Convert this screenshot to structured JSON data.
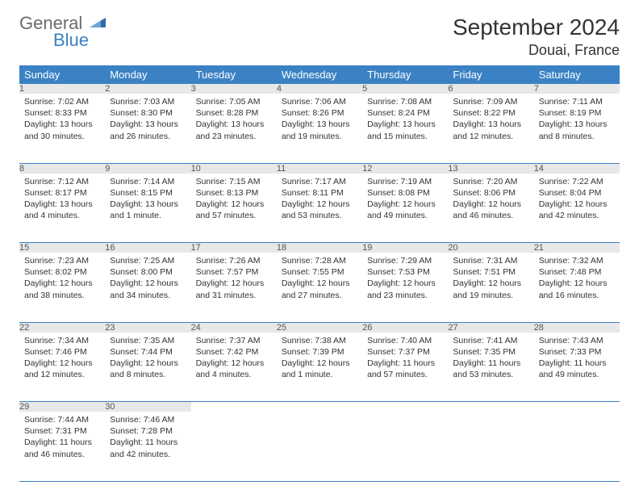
{
  "logo": {
    "general": "General",
    "blue": "Blue"
  },
  "title": "September 2024",
  "location": "Douai, France",
  "colors": {
    "header_bg": "#3b82c4",
    "header_fg": "#ffffff",
    "daynum_bg": "#e8e8e8",
    "row_divider": "#3b82c4",
    "logo_gray": "#6b6b6b",
    "logo_blue": "#3b82c4"
  },
  "weekdays": [
    "Sunday",
    "Monday",
    "Tuesday",
    "Wednesday",
    "Thursday",
    "Friday",
    "Saturday"
  ],
  "weeks": [
    [
      {
        "n": "1",
        "sunrise": "Sunrise: 7:02 AM",
        "sunset": "Sunset: 8:33 PM",
        "day1": "Daylight: 13 hours",
        "day2": "and 30 minutes."
      },
      {
        "n": "2",
        "sunrise": "Sunrise: 7:03 AM",
        "sunset": "Sunset: 8:30 PM",
        "day1": "Daylight: 13 hours",
        "day2": "and 26 minutes."
      },
      {
        "n": "3",
        "sunrise": "Sunrise: 7:05 AM",
        "sunset": "Sunset: 8:28 PM",
        "day1": "Daylight: 13 hours",
        "day2": "and 23 minutes."
      },
      {
        "n": "4",
        "sunrise": "Sunrise: 7:06 AM",
        "sunset": "Sunset: 8:26 PM",
        "day1": "Daylight: 13 hours",
        "day2": "and 19 minutes."
      },
      {
        "n": "5",
        "sunrise": "Sunrise: 7:08 AM",
        "sunset": "Sunset: 8:24 PM",
        "day1": "Daylight: 13 hours",
        "day2": "and 15 minutes."
      },
      {
        "n": "6",
        "sunrise": "Sunrise: 7:09 AM",
        "sunset": "Sunset: 8:22 PM",
        "day1": "Daylight: 13 hours",
        "day2": "and 12 minutes."
      },
      {
        "n": "7",
        "sunrise": "Sunrise: 7:11 AM",
        "sunset": "Sunset: 8:19 PM",
        "day1": "Daylight: 13 hours",
        "day2": "and 8 minutes."
      }
    ],
    [
      {
        "n": "8",
        "sunrise": "Sunrise: 7:12 AM",
        "sunset": "Sunset: 8:17 PM",
        "day1": "Daylight: 13 hours",
        "day2": "and 4 minutes."
      },
      {
        "n": "9",
        "sunrise": "Sunrise: 7:14 AM",
        "sunset": "Sunset: 8:15 PM",
        "day1": "Daylight: 13 hours",
        "day2": "and 1 minute."
      },
      {
        "n": "10",
        "sunrise": "Sunrise: 7:15 AM",
        "sunset": "Sunset: 8:13 PM",
        "day1": "Daylight: 12 hours",
        "day2": "and 57 minutes."
      },
      {
        "n": "11",
        "sunrise": "Sunrise: 7:17 AM",
        "sunset": "Sunset: 8:11 PM",
        "day1": "Daylight: 12 hours",
        "day2": "and 53 minutes."
      },
      {
        "n": "12",
        "sunrise": "Sunrise: 7:19 AM",
        "sunset": "Sunset: 8:08 PM",
        "day1": "Daylight: 12 hours",
        "day2": "and 49 minutes."
      },
      {
        "n": "13",
        "sunrise": "Sunrise: 7:20 AM",
        "sunset": "Sunset: 8:06 PM",
        "day1": "Daylight: 12 hours",
        "day2": "and 46 minutes."
      },
      {
        "n": "14",
        "sunrise": "Sunrise: 7:22 AM",
        "sunset": "Sunset: 8:04 PM",
        "day1": "Daylight: 12 hours",
        "day2": "and 42 minutes."
      }
    ],
    [
      {
        "n": "15",
        "sunrise": "Sunrise: 7:23 AM",
        "sunset": "Sunset: 8:02 PM",
        "day1": "Daylight: 12 hours",
        "day2": "and 38 minutes."
      },
      {
        "n": "16",
        "sunrise": "Sunrise: 7:25 AM",
        "sunset": "Sunset: 8:00 PM",
        "day1": "Daylight: 12 hours",
        "day2": "and 34 minutes."
      },
      {
        "n": "17",
        "sunrise": "Sunrise: 7:26 AM",
        "sunset": "Sunset: 7:57 PM",
        "day1": "Daylight: 12 hours",
        "day2": "and 31 minutes."
      },
      {
        "n": "18",
        "sunrise": "Sunrise: 7:28 AM",
        "sunset": "Sunset: 7:55 PM",
        "day1": "Daylight: 12 hours",
        "day2": "and 27 minutes."
      },
      {
        "n": "19",
        "sunrise": "Sunrise: 7:29 AM",
        "sunset": "Sunset: 7:53 PM",
        "day1": "Daylight: 12 hours",
        "day2": "and 23 minutes."
      },
      {
        "n": "20",
        "sunrise": "Sunrise: 7:31 AM",
        "sunset": "Sunset: 7:51 PM",
        "day1": "Daylight: 12 hours",
        "day2": "and 19 minutes."
      },
      {
        "n": "21",
        "sunrise": "Sunrise: 7:32 AM",
        "sunset": "Sunset: 7:48 PM",
        "day1": "Daylight: 12 hours",
        "day2": "and 16 minutes."
      }
    ],
    [
      {
        "n": "22",
        "sunrise": "Sunrise: 7:34 AM",
        "sunset": "Sunset: 7:46 PM",
        "day1": "Daylight: 12 hours",
        "day2": "and 12 minutes."
      },
      {
        "n": "23",
        "sunrise": "Sunrise: 7:35 AM",
        "sunset": "Sunset: 7:44 PM",
        "day1": "Daylight: 12 hours",
        "day2": "and 8 minutes."
      },
      {
        "n": "24",
        "sunrise": "Sunrise: 7:37 AM",
        "sunset": "Sunset: 7:42 PM",
        "day1": "Daylight: 12 hours",
        "day2": "and 4 minutes."
      },
      {
        "n": "25",
        "sunrise": "Sunrise: 7:38 AM",
        "sunset": "Sunset: 7:39 PM",
        "day1": "Daylight: 12 hours",
        "day2": "and 1 minute."
      },
      {
        "n": "26",
        "sunrise": "Sunrise: 7:40 AM",
        "sunset": "Sunset: 7:37 PM",
        "day1": "Daylight: 11 hours",
        "day2": "and 57 minutes."
      },
      {
        "n": "27",
        "sunrise": "Sunrise: 7:41 AM",
        "sunset": "Sunset: 7:35 PM",
        "day1": "Daylight: 11 hours",
        "day2": "and 53 minutes."
      },
      {
        "n": "28",
        "sunrise": "Sunrise: 7:43 AM",
        "sunset": "Sunset: 7:33 PM",
        "day1": "Daylight: 11 hours",
        "day2": "and 49 minutes."
      }
    ],
    [
      {
        "n": "29",
        "sunrise": "Sunrise: 7:44 AM",
        "sunset": "Sunset: 7:31 PM",
        "day1": "Daylight: 11 hours",
        "day2": "and 46 minutes."
      },
      {
        "n": "30",
        "sunrise": "Sunrise: 7:46 AM",
        "sunset": "Sunset: 7:28 PM",
        "day1": "Daylight: 11 hours",
        "day2": "and 42 minutes."
      },
      null,
      null,
      null,
      null,
      null
    ]
  ]
}
